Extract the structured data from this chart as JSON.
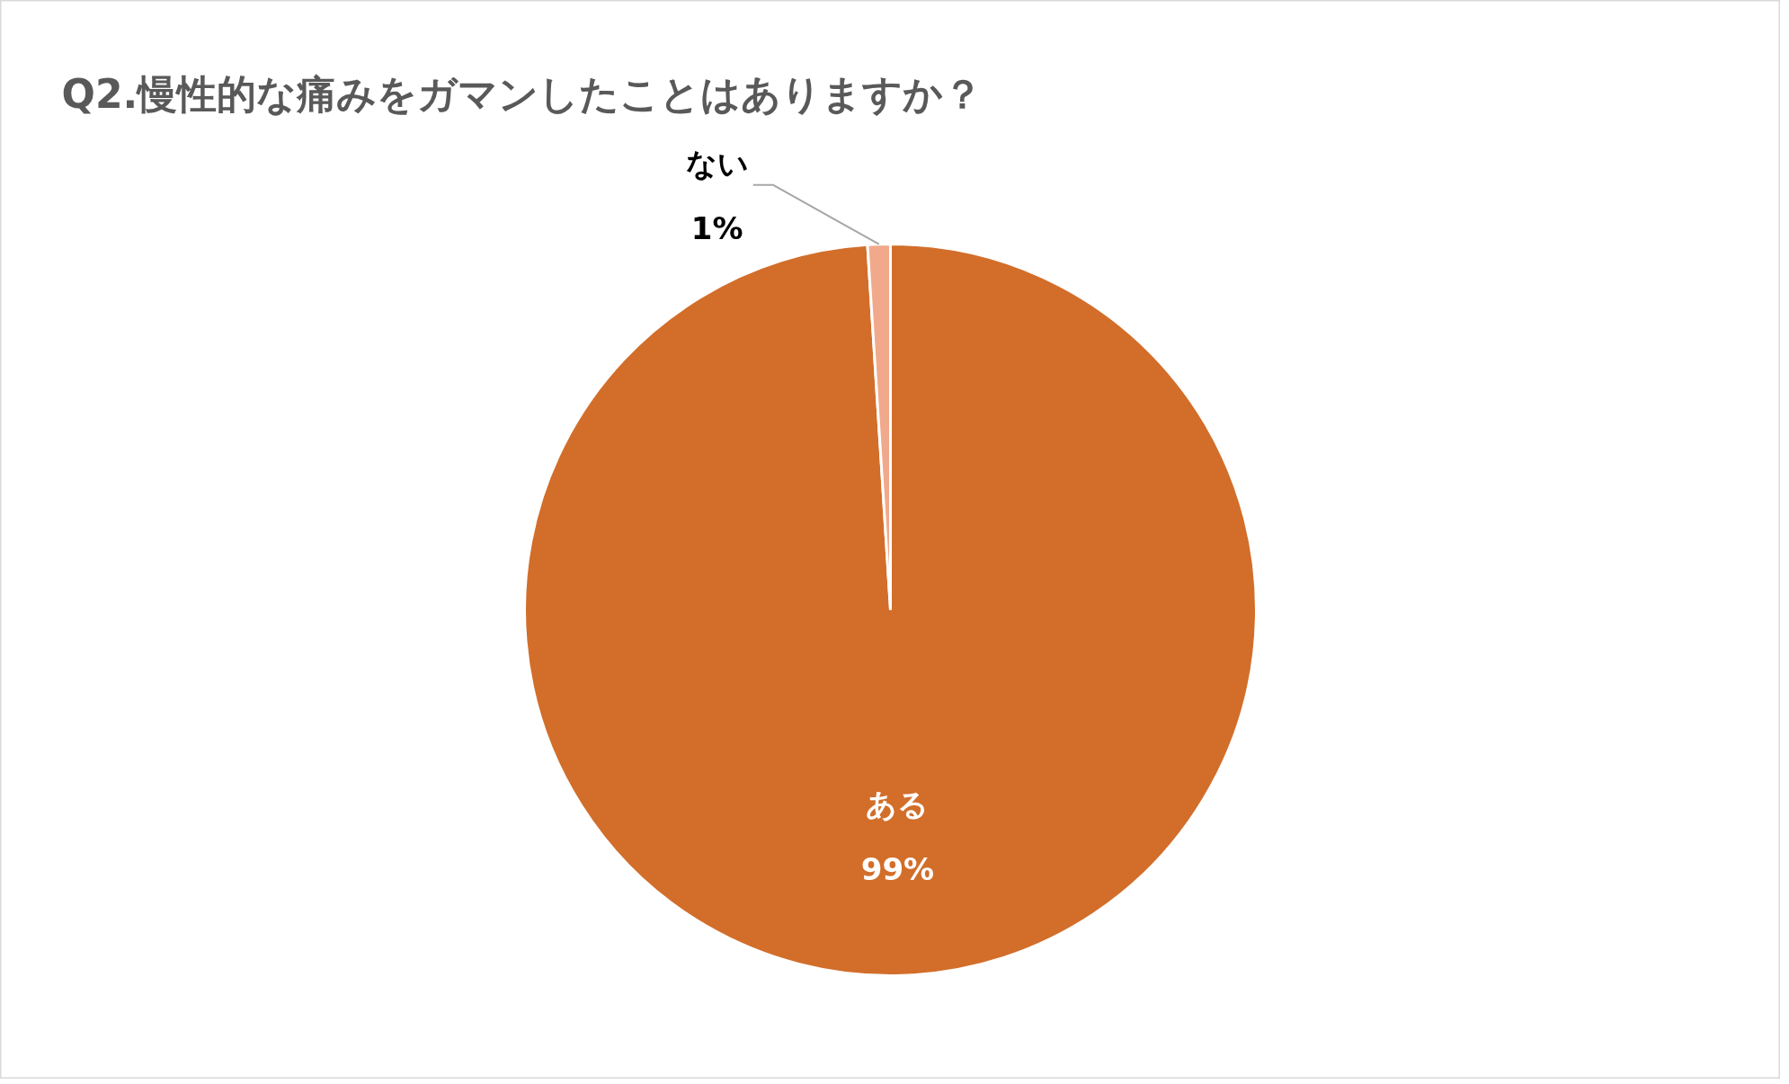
{
  "chart_data": {
    "type": "pie",
    "title": "Q2.慢性的な痛みをガマンしたことはありますか？",
    "categories": [
      "ある",
      "ない"
    ],
    "values": [
      99,
      1
    ],
    "colors": [
      "#d26e2a",
      "#f1a98b"
    ],
    "value_labels": [
      "99%",
      "1%"
    ],
    "legend": false
  }
}
